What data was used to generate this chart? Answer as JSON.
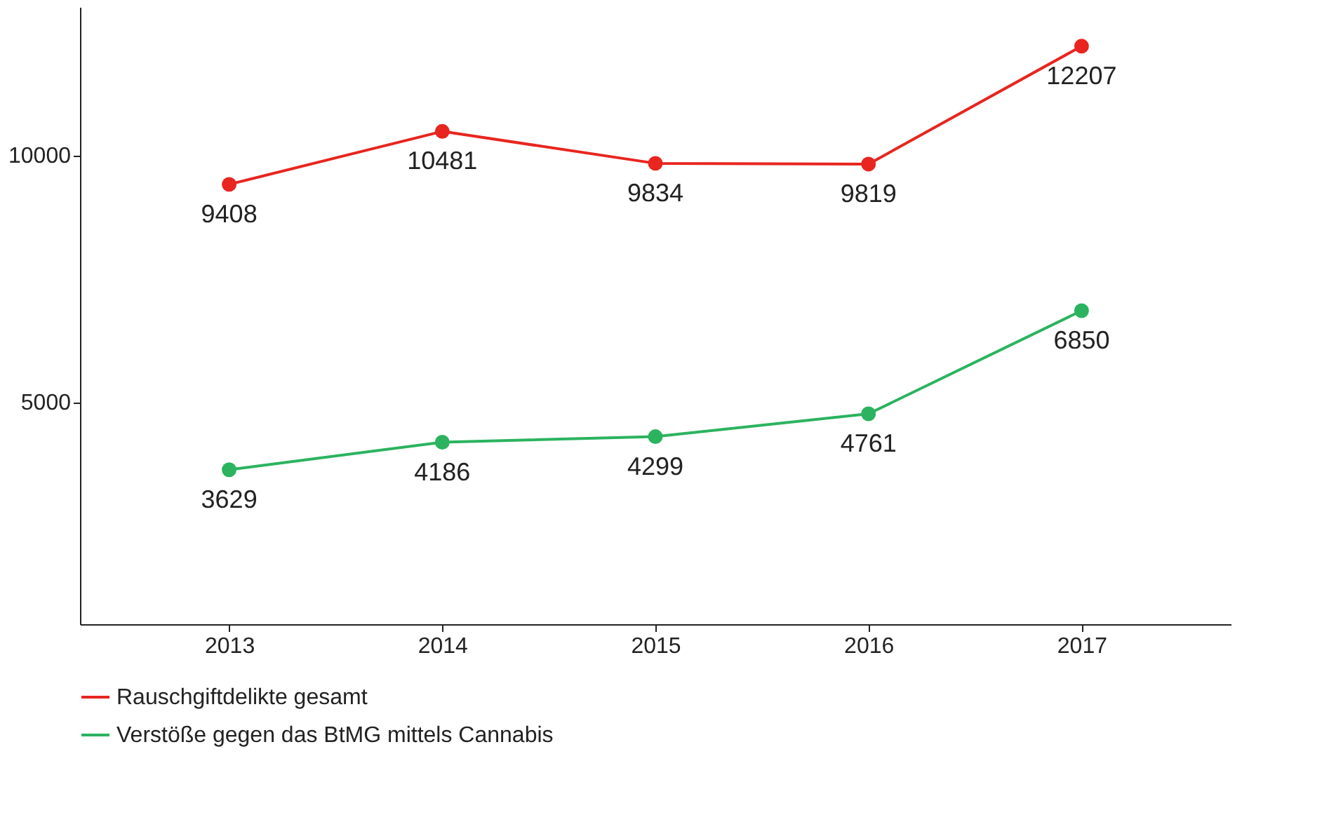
{
  "chart_data": {
    "type": "line",
    "categories": [
      "2013",
      "2014",
      "2015",
      "2016",
      "2017"
    ],
    "series": [
      {
        "name": "Rauschgiftdelikte gesamt",
        "color": "#e8251f",
        "values": [
          9408,
          10481,
          9834,
          9819,
          12207
        ]
      },
      {
        "name": "Verstöße gegen das BtMG mittels Cannabis",
        "color": "#2bb35f",
        "values": [
          3629,
          4186,
          4299,
          4761,
          6850
        ]
      }
    ],
    "ylim": [
      500,
      13000
    ],
    "yticks": [
      5000,
      10000
    ],
    "grid": false,
    "legend": "bottom",
    "marker": "circle",
    "line_style": "solid",
    "data_labels": true
  }
}
